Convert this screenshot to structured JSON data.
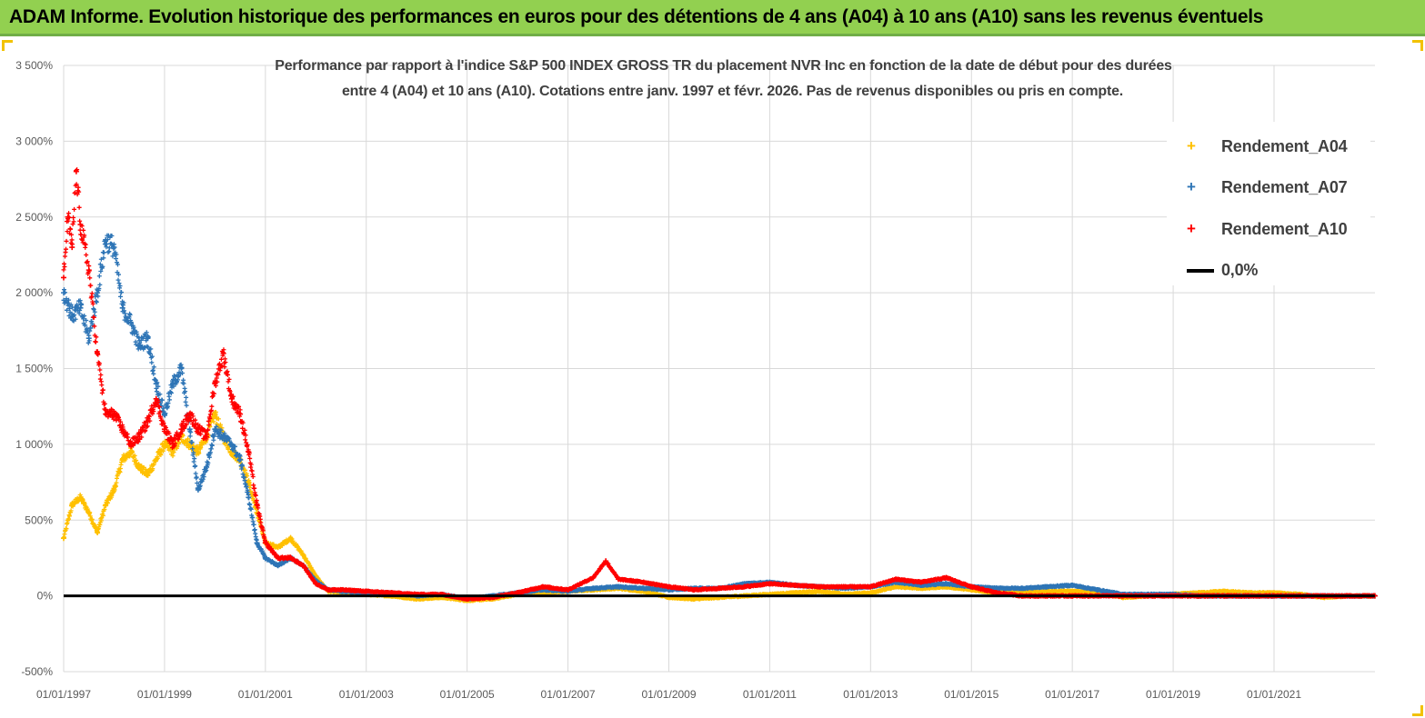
{
  "banner": {
    "title": "ADAM Informe. Evolution historique des performances en euros pour des détentions de 4 ans (A04) à 10 ans (A10) sans les revenus éventuels"
  },
  "colors": {
    "banner_bg": "#92d050",
    "A04": "#ffc000",
    "A07": "#2e75b6",
    "A10": "#ff0000",
    "zero_line": "#000000",
    "grid": "#d9d9d9"
  },
  "chart_data": {
    "type": "scatter",
    "title_line1": "Performance par rapport à l'indice S&P 500 INDEX GROSS TR  du placement NVR Inc en fonction de la date de début pour des durées",
    "title_line2": "entre 4 (A04) et 10 ans (A10). Cotations entre janv. 1997 et févr. 2026. Pas de revenus disponibles ou pris en compte.",
    "xlabel": "",
    "ylabel": "",
    "x_range": [
      "1997-01-01",
      "2022-12-31"
    ],
    "ylim": [
      -500,
      3500
    ],
    "y_ticks": [
      -500,
      0,
      500,
      1000,
      1500,
      2000,
      2500,
      3000,
      3500
    ],
    "y_tick_labels": [
      "-500%",
      "0%",
      "500%",
      "1 000%",
      "1 500%",
      "2 000%",
      "2 500%",
      "3 000%",
      "3 500%"
    ],
    "x_tick_labels": [
      "01/01/1997",
      "01/01/1999",
      "01/01/2001",
      "01/01/2003",
      "01/01/2005",
      "01/01/2007",
      "01/01/2009",
      "01/01/2011",
      "01/01/2013",
      "01/01/2015",
      "01/01/2017",
      "01/01/2019",
      "01/01/2021"
    ],
    "grid": true,
    "legend_position": "top-right",
    "marker": "+",
    "series": [
      {
        "name": "Rendement_A04",
        "color": "#ffc000",
        "unit": "%",
        "points": [
          [
            "1997-01-01",
            380
          ],
          [
            "1997-03-01",
            600
          ],
          [
            "1997-05-01",
            650
          ],
          [
            "1997-07-01",
            550
          ],
          [
            "1997-09-01",
            420
          ],
          [
            "1997-11-01",
            600
          ],
          [
            "1998-01-01",
            700
          ],
          [
            "1998-03-01",
            900
          ],
          [
            "1998-05-01",
            950
          ],
          [
            "1998-07-01",
            850
          ],
          [
            "1998-09-01",
            800
          ],
          [
            "1998-11-01",
            900
          ],
          [
            "1999-01-01",
            1000
          ],
          [
            "1999-03-01",
            950
          ],
          [
            "1999-05-01",
            1050
          ],
          [
            "1999-07-01",
            1000
          ],
          [
            "1999-09-01",
            950
          ],
          [
            "1999-11-01",
            1050
          ],
          [
            "2000-01-01",
            1200
          ],
          [
            "2000-03-01",
            1050
          ],
          [
            "2000-05-01",
            950
          ],
          [
            "2000-07-01",
            900
          ],
          [
            "2000-09-01",
            750
          ],
          [
            "2000-11-01",
            550
          ],
          [
            "2001-01-01",
            350
          ],
          [
            "2001-04-01",
            320
          ],
          [
            "2001-07-01",
            380
          ],
          [
            "2001-10-01",
            270
          ],
          [
            "2002-01-01",
            130
          ],
          [
            "2002-04-01",
            30
          ],
          [
            "2002-07-01",
            20
          ],
          [
            "2003-01-01",
            10
          ],
          [
            "2003-07-01",
            0
          ],
          [
            "2004-01-01",
            -20
          ],
          [
            "2004-07-01",
            -10
          ],
          [
            "2005-01-01",
            -30
          ],
          [
            "2005-07-01",
            -20
          ],
          [
            "2006-01-01",
            10
          ],
          [
            "2006-07-01",
            20
          ],
          [
            "2007-01-01",
            30
          ],
          [
            "2007-07-01",
            40
          ],
          [
            "2008-01-01",
            50
          ],
          [
            "2008-07-01",
            30
          ],
          [
            "2009-01-01",
            -10
          ],
          [
            "2009-07-01",
            -20
          ],
          [
            "2010-01-01",
            -10
          ],
          [
            "2010-07-01",
            0
          ],
          [
            "2011-01-01",
            10
          ],
          [
            "2011-07-01",
            20
          ],
          [
            "2012-01-01",
            30
          ],
          [
            "2012-07-01",
            10
          ],
          [
            "2013-01-01",
            20
          ],
          [
            "2013-07-01",
            60
          ],
          [
            "2014-01-01",
            50
          ],
          [
            "2014-07-01",
            60
          ],
          [
            "2015-01-01",
            40
          ],
          [
            "2015-07-01",
            20
          ],
          [
            "2016-01-01",
            20
          ],
          [
            "2016-07-01",
            30
          ],
          [
            "2017-01-01",
            30
          ],
          [
            "2017-07-01",
            20
          ],
          [
            "2018-01-01",
            -10
          ],
          [
            "2018-07-01",
            0
          ],
          [
            "2019-01-01",
            10
          ],
          [
            "2019-07-01",
            20
          ],
          [
            "2020-01-01",
            30
          ],
          [
            "2020-07-01",
            20
          ],
          [
            "2021-01-01",
            20
          ],
          [
            "2021-07-01",
            10
          ],
          [
            "2022-01-01",
            -10
          ],
          [
            "2022-07-01",
            0
          ],
          [
            "2022-12-31",
            0
          ]
        ]
      },
      {
        "name": "Rendement_A07",
        "color": "#2e75b6",
        "unit": "%",
        "points": [
          [
            "1997-01-01",
            2000
          ],
          [
            "1997-03-01",
            1850
          ],
          [
            "1997-05-01",
            1900
          ],
          [
            "1997-07-01",
            1700
          ],
          [
            "1997-09-01",
            2000
          ],
          [
            "1997-11-01",
            2350
          ],
          [
            "1998-01-01",
            2300
          ],
          [
            "1998-03-01",
            1900
          ],
          [
            "1998-05-01",
            1800
          ],
          [
            "1998-07-01",
            1650
          ],
          [
            "1998-09-01",
            1700
          ],
          [
            "1998-11-01",
            1400
          ],
          [
            "1999-01-01",
            1200
          ],
          [
            "1999-03-01",
            1400
          ],
          [
            "1999-05-01",
            1500
          ],
          [
            "1999-07-01",
            1100
          ],
          [
            "1999-09-01",
            700
          ],
          [
            "1999-11-01",
            850
          ],
          [
            "2000-01-01",
            1100
          ],
          [
            "2000-03-01",
            1050
          ],
          [
            "2000-05-01",
            1000
          ],
          [
            "2000-07-01",
            900
          ],
          [
            "2000-09-01",
            650
          ],
          [
            "2000-11-01",
            350
          ],
          [
            "2001-01-01",
            250
          ],
          [
            "2001-04-01",
            200
          ],
          [
            "2001-07-01",
            250
          ],
          [
            "2001-10-01",
            200
          ],
          [
            "2002-01-01",
            100
          ],
          [
            "2002-04-01",
            40
          ],
          [
            "2002-07-01",
            30
          ],
          [
            "2003-01-01",
            20
          ],
          [
            "2003-07-01",
            20
          ],
          [
            "2004-01-01",
            0
          ],
          [
            "2004-07-01",
            10
          ],
          [
            "2005-01-01",
            -20
          ],
          [
            "2005-07-01",
            0
          ],
          [
            "2006-01-01",
            20
          ],
          [
            "2006-07-01",
            40
          ],
          [
            "2007-01-01",
            30
          ],
          [
            "2007-07-01",
            50
          ],
          [
            "2008-01-01",
            60
          ],
          [
            "2008-07-01",
            50
          ],
          [
            "2009-01-01",
            40
          ],
          [
            "2009-07-01",
            50
          ],
          [
            "2010-01-01",
            50
          ],
          [
            "2010-07-01",
            80
          ],
          [
            "2011-01-01",
            90
          ],
          [
            "2011-07-01",
            70
          ],
          [
            "2012-01-01",
            60
          ],
          [
            "2012-07-01",
            50
          ],
          [
            "2013-01-01",
            60
          ],
          [
            "2013-07-01",
            90
          ],
          [
            "2014-01-01",
            70
          ],
          [
            "2014-07-01",
            80
          ],
          [
            "2015-01-01",
            60
          ],
          [
            "2015-07-01",
            50
          ],
          [
            "2016-01-01",
            50
          ],
          [
            "2016-07-01",
            60
          ],
          [
            "2017-01-01",
            70
          ],
          [
            "2017-07-01",
            40
          ],
          [
            "2018-01-01",
            10
          ],
          [
            "2018-07-01",
            10
          ],
          [
            "2019-01-01",
            10
          ],
          [
            "2019-07-01",
            0
          ],
          [
            "2020-01-01",
            0
          ],
          [
            "2020-07-01",
            0
          ],
          [
            "2021-01-01",
            0
          ],
          [
            "2021-07-01",
            0
          ],
          [
            "2022-01-01",
            0
          ],
          [
            "2022-07-01",
            0
          ],
          [
            "2022-12-31",
            0
          ]
        ]
      },
      {
        "name": "Rendement_A10",
        "color": "#ff0000",
        "unit": "%",
        "points": [
          [
            "1997-01-01",
            2100
          ],
          [
            "1997-02-01",
            2500
          ],
          [
            "1997-03-01",
            2300
          ],
          [
            "1997-04-01",
            2800
          ],
          [
            "1997-05-01",
            2450
          ],
          [
            "1997-07-01",
            2150
          ],
          [
            "1997-09-01",
            1600
          ],
          [
            "1997-11-01",
            1200
          ],
          [
            "1998-01-01",
            1200
          ],
          [
            "1998-03-01",
            1100
          ],
          [
            "1998-05-01",
            1000
          ],
          [
            "1998-07-01",
            1050
          ],
          [
            "1998-09-01",
            1150
          ],
          [
            "1998-11-01",
            1300
          ],
          [
            "1999-01-01",
            1100
          ],
          [
            "1999-03-01",
            1000
          ],
          [
            "1999-05-01",
            1100
          ],
          [
            "1999-07-01",
            1200
          ],
          [
            "1999-09-01",
            1100
          ],
          [
            "1999-11-01",
            1050
          ],
          [
            "2000-01-01",
            1400
          ],
          [
            "2000-03-01",
            1600
          ],
          [
            "2000-05-01",
            1300
          ],
          [
            "2000-07-01",
            1200
          ],
          [
            "2000-09-01",
            950
          ],
          [
            "2000-11-01",
            600
          ],
          [
            "2001-01-01",
            350
          ],
          [
            "2001-04-01",
            250
          ],
          [
            "2001-07-01",
            250
          ],
          [
            "2001-10-01",
            200
          ],
          [
            "2002-01-01",
            80
          ],
          [
            "2002-04-01",
            40
          ],
          [
            "2002-07-01",
            40
          ],
          [
            "2003-01-01",
            30
          ],
          [
            "2003-07-01",
            20
          ],
          [
            "2004-01-01",
            10
          ],
          [
            "2004-07-01",
            10
          ],
          [
            "2005-01-01",
            -20
          ],
          [
            "2005-07-01",
            -10
          ],
          [
            "2006-01-01",
            20
          ],
          [
            "2006-07-01",
            60
          ],
          [
            "2007-01-01",
            40
          ],
          [
            "2007-07-01",
            120
          ],
          [
            "2007-10-01",
            230
          ],
          [
            "2008-01-01",
            110
          ],
          [
            "2008-07-01",
            90
          ],
          [
            "2009-01-01",
            60
          ],
          [
            "2009-07-01",
            40
          ],
          [
            "2010-01-01",
            50
          ],
          [
            "2010-07-01",
            60
          ],
          [
            "2011-01-01",
            80
          ],
          [
            "2011-07-01",
            70
          ],
          [
            "2012-01-01",
            60
          ],
          [
            "2012-07-01",
            60
          ],
          [
            "2013-01-01",
            60
          ],
          [
            "2013-07-01",
            110
          ],
          [
            "2014-01-01",
            90
          ],
          [
            "2014-07-01",
            120
          ],
          [
            "2015-01-01",
            60
          ],
          [
            "2015-07-01",
            20
          ],
          [
            "2016-01-01",
            0
          ],
          [
            "2016-07-01",
            0
          ],
          [
            "2017-01-01",
            0
          ],
          [
            "2017-07-01",
            0
          ],
          [
            "2018-01-01",
            0
          ],
          [
            "2018-07-01",
            0
          ],
          [
            "2019-01-01",
            0
          ],
          [
            "2019-07-01",
            0
          ],
          [
            "2020-01-01",
            0
          ],
          [
            "2020-07-01",
            0
          ],
          [
            "2021-01-01",
            0
          ],
          [
            "2021-07-01",
            0
          ],
          [
            "2022-01-01",
            0
          ],
          [
            "2022-07-01",
            0
          ],
          [
            "2022-12-31",
            0
          ]
        ]
      },
      {
        "name": "0,0%",
        "color": "#000000",
        "type": "line",
        "points": [
          [
            "1997-01-01",
            0
          ],
          [
            "2022-12-31",
            0
          ]
        ]
      }
    ]
  },
  "legend": {
    "items": [
      {
        "label": "Rendement_A04",
        "color": "#ffc000",
        "marker": "+"
      },
      {
        "label": "Rendement_A07",
        "color": "#2e75b6",
        "marker": "+"
      },
      {
        "label": "Rendement_A10",
        "color": "#ff0000",
        "marker": "+"
      },
      {
        "label": "0,0%",
        "color": "#000000",
        "marker": "line"
      }
    ]
  }
}
